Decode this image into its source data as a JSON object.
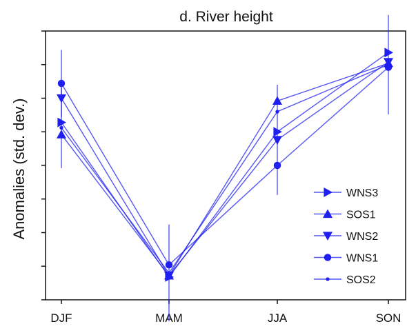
{
  "chart_data": {
    "type": "line",
    "title": "d. River height",
    "xlabel": "",
    "ylabel": "Anomalies  (std. dev.)",
    "categories": [
      "DJF",
      "MAM",
      "JJA",
      "SON"
    ],
    "ylim": [
      -1.0,
      1.0
    ],
    "yticks": [
      -1.0,
      -0.75,
      -0.5,
      -0.25,
      0.0,
      0.25,
      0.5,
      0.75,
      1.0
    ],
    "ytick_labels_shown": false,
    "grid": false,
    "legend_position": "lower-right",
    "color": "#1f1ff0",
    "series": [
      {
        "name": "WNS3",
        "marker": "triangle-right",
        "values": [
          0.32,
          -0.83,
          0.25,
          0.84
        ],
        "err": [
          null,
          null,
          null,
          null
        ]
      },
      {
        "name": "SOS1",
        "marker": "triangle-up",
        "values": [
          0.23,
          -0.82,
          0.48,
          0.76
        ],
        "err": [
          null,
          null,
          null,
          null
        ]
      },
      {
        "name": "WNS2",
        "marker": "triangle-down",
        "values": [
          0.5,
          -0.82,
          0.19,
          0.77
        ],
        "err": [
          null,
          null,
          null,
          null
        ]
      },
      {
        "name": "WNS1",
        "marker": "circle",
        "values": [
          0.61,
          -0.74,
          0.0,
          0.73
        ],
        "err": [
          0.25,
          null,
          0.22,
          null
        ]
      },
      {
        "name": "SOS2",
        "marker": "dot",
        "values": [
          0.28,
          -0.8,
          0.4,
          0.75
        ],
        "err": [
          0.3,
          0.36,
          0.2,
          0.37
        ]
      }
    ]
  }
}
